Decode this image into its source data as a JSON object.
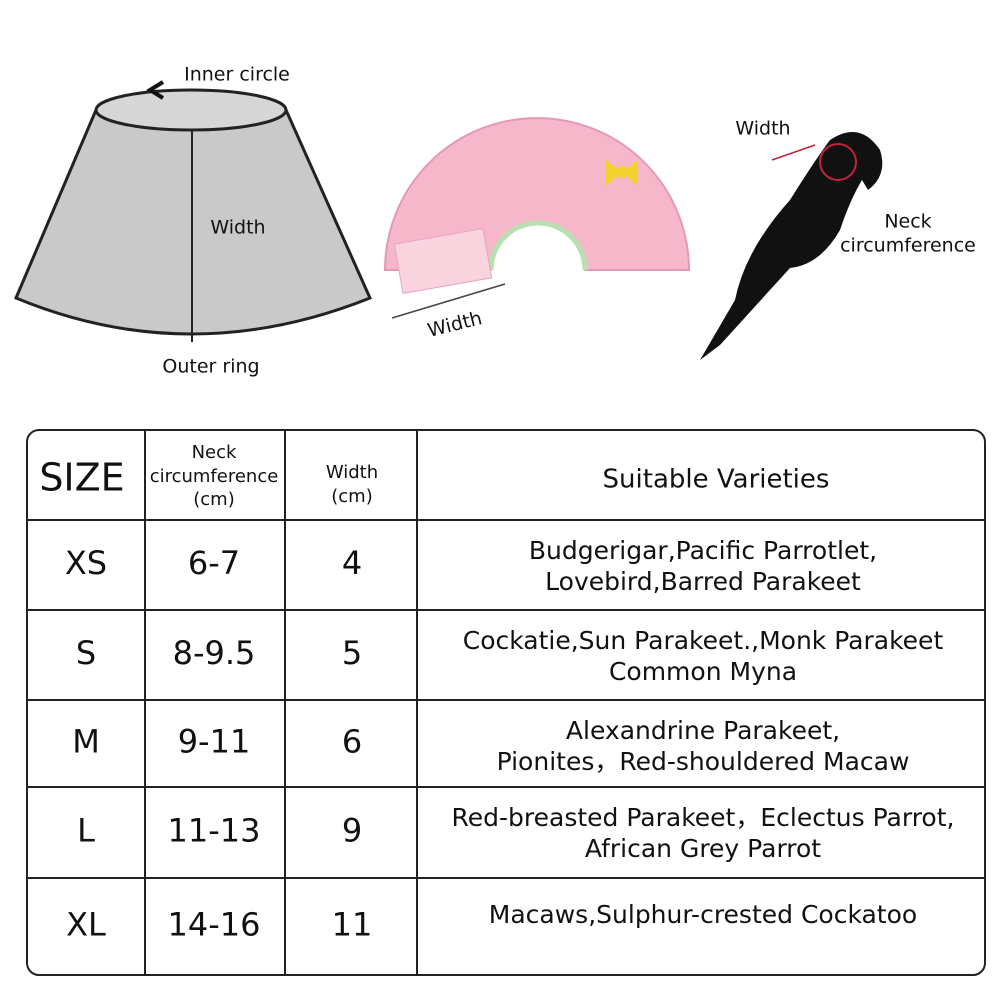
{
  "diagram": {
    "cone": {
      "inner": "Inner circle",
      "width": "Width",
      "outer": "Outer ring"
    },
    "collar": {
      "width": "Width"
    },
    "parrot": {
      "width": "Width",
      "neck": [
        "Neck",
        "circumference"
      ]
    }
  },
  "table": {
    "header": {
      "size": "SIZE",
      "neck": [
        "Neck",
        "circumference",
        "(cm)"
      ],
      "width": [
        "Width",
        "(cm)"
      ],
      "varieties": "Suitable Varieties"
    },
    "rows": [
      {
        "size": "XS",
        "neck": "6-7",
        "width": "4",
        "varieties": [
          "Budgerigar,Pacific Parrotlet,",
          "Lovebird,Barred Parakeet"
        ]
      },
      {
        "size": "S",
        "neck": "8-9.5",
        "width": "5",
        "varieties": [
          "Cockatie,Sun Parakeet.,Monk Parakeet",
          "Common Myna"
        ]
      },
      {
        "size": "M",
        "neck": "9-11",
        "width": "6",
        "varieties": [
          "Alexandrine Parakeet,",
          "Pionites，Red-shouldered Macaw"
        ]
      },
      {
        "size": "L",
        "neck": "11-13",
        "width": "9",
        "varieties": [
          "Red-breasted Parakeet，Eclectus Parrot,",
          "African Grey Parrot"
        ]
      },
      {
        "size": "XL",
        "neck": "14-16",
        "width": "11",
        "varieties": [
          "Macaws,Sulphur-crested Cockatoo"
        ]
      }
    ]
  }
}
